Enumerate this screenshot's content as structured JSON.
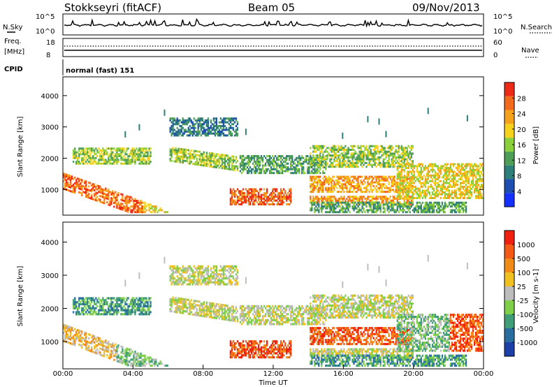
{
  "header": {
    "station": "Stokkseyri (fitACF)",
    "beam": "Beam 05",
    "date": "09/Nov/2013"
  },
  "top_panels": {
    "nsky_label": "N.Sky",
    "nsearch_label": "N.Search",
    "nsky_ticks": [
      "10^5",
      "10^0"
    ],
    "nsearch_ticks": [
      "10^5",
      "10^0"
    ],
    "freq_label": "Freq.",
    "freq_unit": "[MHz]",
    "freq_ticks": [
      "18",
      "8"
    ],
    "nave_label": "Nave",
    "nave_ticks": [
      "60",
      "0"
    ],
    "cpid_label": "CPID",
    "cpid_value": "normal (fast) 151"
  },
  "chart_data": [
    {
      "type": "heatmap",
      "name": "power-panel",
      "xlabel": "",
      "ylabel": "Slant Range [km]",
      "y_ticks": [
        "1000",
        "2000",
        "3000",
        "4000"
      ],
      "x_ticks": [
        "00:00",
        "04:00",
        "08:00",
        "12:00",
        "16:00",
        "20:00",
        "00:00"
      ],
      "ylim": [
        180,
        4600
      ],
      "colorbar": {
        "label": "Power [dB]",
        "ticks": [
          "4",
          "8",
          "12",
          "16",
          "20",
          "24",
          "28"
        ],
        "range": [
          0,
          32
        ],
        "colors": [
          "#1430ff",
          "#1e4fb0",
          "#2e7f7a",
          "#4f9e58",
          "#8ccf3c",
          "#f6d21c",
          "#f4a11c",
          "#f26a1c",
          "#ee2b16"
        ]
      }
    },
    {
      "type": "heatmap",
      "name": "velocity-panel",
      "xlabel": "Time UT",
      "ylabel": "Slant Range [km]",
      "y_ticks": [
        "1000",
        "2000",
        "3000",
        "4000"
      ],
      "x_ticks": [
        "00:00",
        "04:00",
        "08:00",
        "12:00",
        "16:00",
        "20:00",
        "00:00"
      ],
      "ylim": [
        180,
        4600
      ],
      "colorbar": {
        "label": "Velocity [m s-1]",
        "ticks": [
          "1000",
          "500",
          "100",
          "25",
          "-25",
          "-100",
          "-500",
          "-1000"
        ],
        "colors": [
          "#1d3fa8",
          "#2a6ea0",
          "#3f9e78",
          "#7fcf4a",
          "#bdbdbd",
          "#f0c020",
          "#f28c18",
          "#f25a16",
          "#ef2010"
        ]
      }
    }
  ]
}
